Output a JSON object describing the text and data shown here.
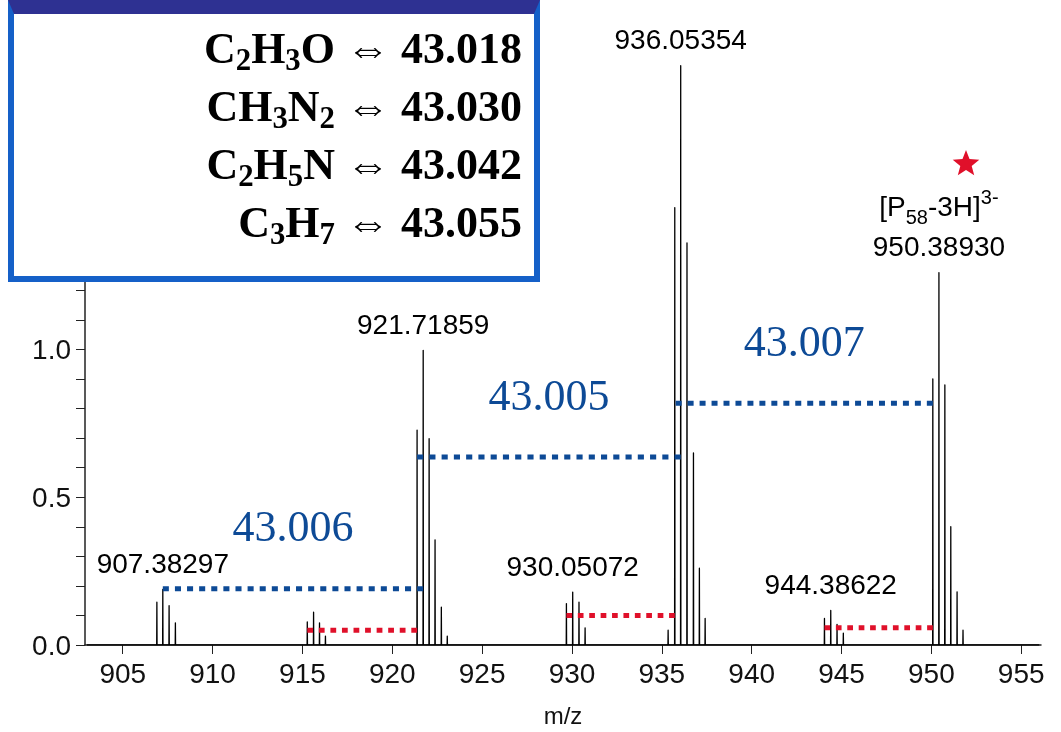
{
  "chart_data": {
    "type": "line",
    "xlabel": "m/z",
    "marker": "none",
    "xlim": [
      902.9,
      956.1
    ],
    "xticks": [
      905,
      910,
      915,
      920,
      925,
      930,
      935,
      940,
      945,
      950,
      955
    ],
    "ylim": [
      0,
      2.1
    ],
    "yticks": [
      {
        "value": 0,
        "label": "0.0"
      },
      {
        "value": 0.1,
        "label": null
      },
      {
        "value": 0.2,
        "label": null
      },
      {
        "value": 0.3,
        "label": null
      },
      {
        "value": 0.4,
        "label": null
      },
      {
        "value": 0.5,
        "label": "0.5"
      },
      {
        "value": 0.6,
        "label": null
      },
      {
        "value": 0.7,
        "label": null
      },
      {
        "value": 0.8,
        "label": null
      },
      {
        "value": 0.9,
        "label": null
      },
      {
        "value": 1.0,
        "label": "1.0"
      },
      {
        "value": 1.1,
        "label": null
      },
      {
        "value": 1.2,
        "label": null
      }
    ],
    "series": [
      {
        "color": "#000000",
        "line_style": "solid",
        "x": [
          903,
          906.89,
          906.9,
          906.91,
          907.22,
          907.23,
          907.24,
          907.57,
          907.58,
          907.59,
          907.92,
          907.93,
          907.94,
          915.26,
          915.27,
          915.28,
          915.61,
          915.62,
          915.63,
          915.94,
          915.95,
          915.96,
          916.27,
          916.28,
          916.29,
          921.37,
          921.38,
          921.39,
          921.71,
          921.72,
          921.73,
          922.04,
          922.05,
          922.06,
          922.37,
          922.38,
          922.39,
          922.72,
          922.73,
          922.74,
          923.05,
          923.06,
          923.07,
          929.68,
          929.69,
          929.7,
          930.03,
          930.04,
          930.05,
          930.38,
          930.39,
          930.4,
          930.72,
          930.73,
          930.74,
          935.34,
          935.35,
          935.36,
          935.71,
          935.72,
          935.73,
          936.04,
          936.05,
          936.06,
          936.39,
          936.4,
          936.41,
          936.75,
          936.76,
          936.77,
          937.08,
          937.09,
          937.1,
          937.4,
          937.41,
          937.42,
          944.04,
          944.05,
          944.06,
          944.39,
          944.4,
          944.41,
          944.74,
          944.75,
          944.76,
          945.09,
          945.1,
          945.11,
          950.07,
          950.08,
          950.09,
          950.41,
          950.42,
          950.43,
          950.74,
          950.75,
          950.76,
          951.07,
          951.08,
          951.09,
          951.42,
          951.43,
          951.44,
          951.75,
          951.76,
          951.77,
          956
        ],
        "values": [
          0,
          0,
          0.145,
          0,
          0,
          0.188,
          0,
          0,
          0.133,
          0,
          0,
          0.075,
          0,
          0,
          0.078,
          0,
          0,
          0.111,
          0,
          0,
          0.075,
          0,
          0,
          0.03,
          0,
          0,
          0.727,
          0,
          0,
          0.997,
          0,
          0,
          0.698,
          0,
          0,
          0.356,
          0,
          0,
          0.128,
          0,
          0,
          0.03,
          0,
          0,
          0.14,
          0,
          0,
          0.179,
          0,
          0,
          0.145,
          0,
          0,
          0.058,
          0,
          0,
          0.05,
          0,
          0,
          1.48,
          0,
          0,
          1.96,
          0,
          0,
          1.36,
          0,
          0,
          0.65,
          0,
          0,
          0.26,
          0,
          0,
          0.09,
          0,
          0,
          0.09,
          0,
          0,
          0.117,
          0,
          0,
          0.07,
          0,
          0,
          0.04,
          0,
          0,
          0.9,
          0,
          0,
          1.26,
          0,
          0,
          0.88,
          0,
          0,
          0.4,
          0,
          0,
          0.18,
          0,
          0,
          0.05,
          0,
          0
        ]
      },
      {
        "name": "43.006",
        "color": "#0d4a96",
        "line_style": "dotted",
        "x": [
          907.23,
          921.72
        ],
        "values": [
          0.19,
          0.19
        ]
      },
      {
        "name": "43.005",
        "color": "#0d4a96",
        "line_style": "dotted",
        "x": [
          921.38,
          936.05
        ],
        "values": [
          0.636,
          0.636
        ]
      },
      {
        "name": "43.007",
        "color": "#0d4a96",
        "line_style": "dotted",
        "x": [
          935.77,
          950.08
        ],
        "values": [
          0.818,
          0.818
        ]
      },
      {
        "color": "#e0102a",
        "line_style": "dotted",
        "x": [
          915.27,
          921.38
        ],
        "values": [
          0.05,
          0.05
        ]
      },
      {
        "color": "#e0102a",
        "line_style": "dotted",
        "x": [
          929.69,
          935.72
        ],
        "values": [
          0.1,
          0.1
        ]
      },
      {
        "color": "#e0102a",
        "line_style": "dotted",
        "x": [
          944.05,
          950.08
        ],
        "values": [
          0.058,
          0.058
        ]
      }
    ],
    "annotations": [
      "C$_{2}$H$_{3}$O ⇔ 43.018",
      "CH$_{3}$N$_{2}$ ⇔ 43.030",
      "C$_{2}$H$_{5}$N ⇔ 43.042",
      "C$_{3}$H$_{7}$ ⇔ 43.055",
      {
        "text": "907.38297",
        "x": 907.23,
        "y": 0.188
      },
      {
        "text": "921.71859",
        "x": 921.72,
        "y": 0.997
      },
      {
        "text": "936.05354",
        "x": 936.05,
        "y": 1.96
      },
      {
        "text": "930.05072",
        "x": 930.04,
        "y": 0.179
      },
      {
        "text": "944.38622",
        "x": 944.4,
        "y": 0.117
      },
      {
        "text": "950.38930",
        "x": 950.42,
        "y": 1.26
      },
      {
        "text": "[P$_{58}$-3H]$^{3-}$",
        "x": 950.42,
        "y": 1.26
      }
    ]
  }
}
